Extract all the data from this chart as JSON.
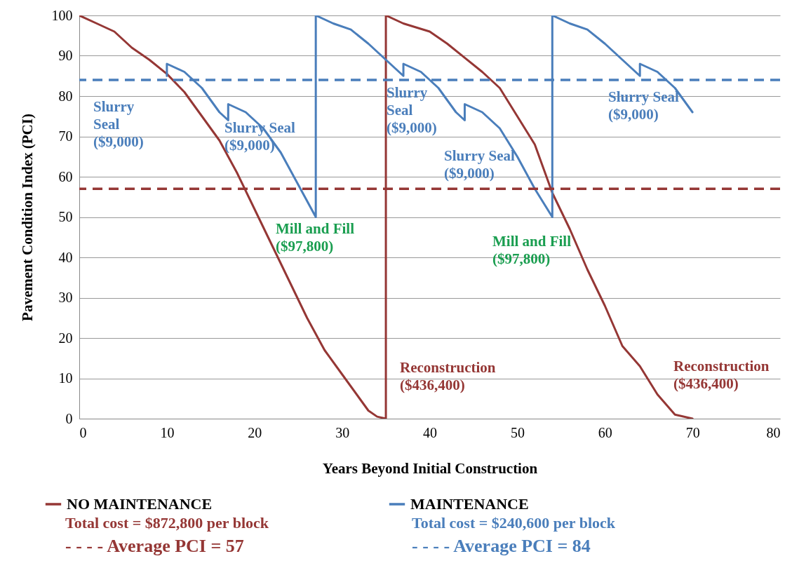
{
  "chart_data": {
    "type": "line",
    "xlabel": "Years Beyond Initial Construction",
    "ylabel": "Pavement Condition Index (PCI)",
    "xlim": [
      0,
      80
    ],
    "xticks": [
      0,
      10,
      20,
      30,
      40,
      50,
      60,
      70,
      80
    ],
    "ylim": [
      0,
      100
    ],
    "yticks": [
      0,
      10,
      20,
      30,
      40,
      50,
      60,
      70,
      80,
      90,
      100
    ],
    "grid": "y",
    "legend": "bottom",
    "line_style": "solid",
    "series": [
      {
        "name": "NO MAINTENANCE",
        "color": "#953735",
        "x": [
          0,
          2,
          4,
          6,
          8,
          10,
          12,
          14,
          16,
          18,
          20,
          22,
          24,
          26,
          28,
          30,
          32,
          33,
          34,
          35,
          35,
          37,
          40,
          42,
          44,
          46,
          48,
          50,
          52,
          54,
          56,
          58,
          60,
          62,
          64,
          66,
          68,
          70
        ],
        "values": [
          100,
          98,
          96,
          92,
          89,
          85.5,
          81,
          75,
          69,
          61,
          52,
          43,
          34,
          25,
          17,
          11,
          5,
          2,
          0.5,
          0,
          100,
          98,
          96,
          93,
          89.5,
          86,
          82,
          75,
          68,
          56,
          47,
          37,
          28,
          18,
          13,
          6,
          1,
          0
        ]
      },
      {
        "name": "MAINTENANCE",
        "color": "#4a7ebb",
        "x": [
          10,
          10,
          12,
          14,
          16,
          17,
          17,
          19,
          21,
          23,
          25,
          27,
          27,
          29,
          31,
          33,
          35,
          37,
          37,
          39,
          41,
          43,
          44,
          44,
          46,
          48,
          50,
          52,
          54,
          54,
          56,
          58,
          60,
          62,
          64,
          64,
          66,
          68,
          70
        ],
        "values": [
          85,
          88,
          86,
          82,
          76,
          74,
          78,
          76,
          72,
          66,
          58,
          50,
          100,
          98,
          96.5,
          93,
          89,
          85,
          88,
          86,
          82,
          76,
          74,
          78,
          76,
          72,
          65,
          57,
          50,
          100,
          98,
          96.5,
          93,
          89,
          85,
          88,
          86,
          82,
          76
        ]
      }
    ],
    "ref_lines": [
      {
        "axis": "y",
        "value": 57,
        "label": "- - - - Average PCI = 57",
        "color": "#953735",
        "line_style": "dashed"
      },
      {
        "axis": "y",
        "value": 84,
        "label": "- - - - Average PCI = 84",
        "color": "#4a7ebb",
        "line_style": "dashed"
      }
    ],
    "annotations": [
      "Slurry\nSeal\n($9,000)",
      "Slurry Seal\n($9,000)",
      "Mill and Fill\n($97,800)",
      "Slurry\nSeal\n($9,000)",
      "Slurry Seal\n($9,000)",
      "Mill and Fill\n($97,800)",
      "Slurry Seal\n($9,000)",
      "Reconstruction\n($436,400)",
      "Reconstruction\n($436,400)",
      "Total cost = $872,800 per block",
      "Total cost = $240,600 per block"
    ]
  }
}
